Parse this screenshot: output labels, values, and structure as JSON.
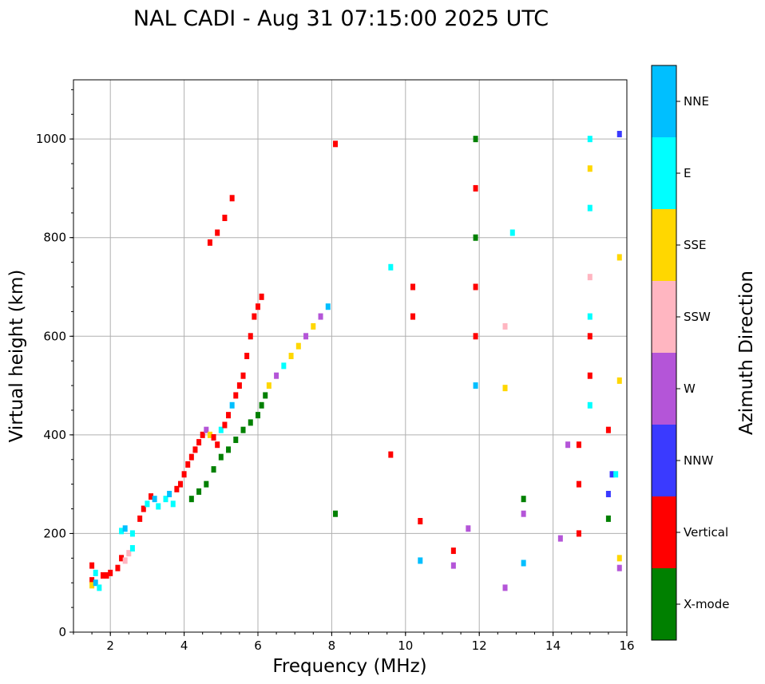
{
  "chart_data": {
    "type": "scatter",
    "title": "NAL CADI - Aug 31 07:15:00 2025 UTC",
    "xlabel": "Frequency (MHz)",
    "ylabel": "Virtual height (km)",
    "xlim": [
      1,
      16
    ],
    "ylim": [
      0,
      1120
    ],
    "xticks": [
      2,
      4,
      6,
      8,
      10,
      12,
      14,
      16
    ],
    "yticks": [
      0,
      200,
      400,
      600,
      800,
      1000
    ],
    "grid": true,
    "colorbar": {
      "label": "Azimuth Direction",
      "categories": [
        {
          "name": "X-mode",
          "color": "#008000"
        },
        {
          "name": "Vertical",
          "color": "#ff0000"
        },
        {
          "name": "NNW",
          "color": "#3a3aff"
        },
        {
          "name": "W",
          "color": "#b455d8"
        },
        {
          "name": "SSW",
          "color": "#ffb6c1"
        },
        {
          "name": "SSE",
          "color": "#ffd700"
        },
        {
          "name": "E",
          "color": "#00ffff"
        },
        {
          "name": "NNE",
          "color": "#00bfff"
        }
      ]
    },
    "points": [
      [
        1.5,
        105,
        "Vertical"
      ],
      [
        1.5,
        95,
        "SSE"
      ],
      [
        1.6,
        120,
        "E"
      ],
      [
        1.6,
        100,
        "NNE"
      ],
      [
        1.7,
        90,
        "E"
      ],
      [
        1.5,
        135,
        "Vertical"
      ],
      [
        1.8,
        115,
        "Vertical"
      ],
      [
        1.9,
        115,
        "Vertical"
      ],
      [
        2.0,
        120,
        "Vertical"
      ],
      [
        2.2,
        130,
        "Vertical"
      ],
      [
        2.3,
        150,
        "Vertical"
      ],
      [
        2.4,
        145,
        "SSW"
      ],
      [
        2.5,
        160,
        "SSW"
      ],
      [
        2.6,
        170,
        "E"
      ],
      [
        2.3,
        205,
        "E"
      ],
      [
        2.4,
        210,
        "NNE"
      ],
      [
        2.6,
        200,
        "E"
      ],
      [
        2.8,
        230,
        "Vertical"
      ],
      [
        2.9,
        250,
        "Vertical"
      ],
      [
        3.0,
        260,
        "E"
      ],
      [
        3.1,
        275,
        "Vertical"
      ],
      [
        3.2,
        270,
        "NNE"
      ],
      [
        3.3,
        255,
        "E"
      ],
      [
        3.5,
        270,
        "E"
      ],
      [
        3.6,
        280,
        "NNE"
      ],
      [
        3.7,
        260,
        "E"
      ],
      [
        3.8,
        290,
        "Vertical"
      ],
      [
        3.9,
        300,
        "Vertical"
      ],
      [
        4.0,
        320,
        "Vertical"
      ],
      [
        4.1,
        340,
        "Vertical"
      ],
      [
        4.2,
        355,
        "Vertical"
      ],
      [
        4.3,
        370,
        "Vertical"
      ],
      [
        4.4,
        385,
        "Vertical"
      ],
      [
        4.5,
        400,
        "Vertical"
      ],
      [
        4.6,
        410,
        "W"
      ],
      [
        4.7,
        400,
        "SSE"
      ],
      [
        4.8,
        395,
        "Vertical"
      ],
      [
        4.9,
        380,
        "Vertical"
      ],
      [
        5.0,
        410,
        "E"
      ],
      [
        5.1,
        420,
        "Vertical"
      ],
      [
        5.2,
        440,
        "Vertical"
      ],
      [
        5.3,
        460,
        "NNE"
      ],
      [
        5.4,
        480,
        "Vertical"
      ],
      [
        5.5,
        500,
        "Vertical"
      ],
      [
        5.6,
        520,
        "Vertical"
      ],
      [
        5.7,
        560,
        "Vertical"
      ],
      [
        5.8,
        600,
        "Vertical"
      ],
      [
        5.9,
        640,
        "Vertical"
      ],
      [
        6.0,
        660,
        "Vertical"
      ],
      [
        6.1,
        680,
        "Vertical"
      ],
      [
        4.2,
        270,
        "X-mode"
      ],
      [
        4.4,
        285,
        "X-mode"
      ],
      [
        4.6,
        300,
        "X-mode"
      ],
      [
        4.8,
        330,
        "X-mode"
      ],
      [
        5.0,
        355,
        "X-mode"
      ],
      [
        5.2,
        370,
        "X-mode"
      ],
      [
        5.4,
        390,
        "X-mode"
      ],
      [
        5.6,
        410,
        "X-mode"
      ],
      [
        5.8,
        425,
        "X-mode"
      ],
      [
        6.0,
        440,
        "X-mode"
      ],
      [
        6.1,
        460,
        "X-mode"
      ],
      [
        6.2,
        480,
        "X-mode"
      ],
      [
        6.3,
        500,
        "SSE"
      ],
      [
        6.5,
        520,
        "W"
      ],
      [
        6.7,
        540,
        "E"
      ],
      [
        6.9,
        560,
        "SSE"
      ],
      [
        7.1,
        580,
        "SSE"
      ],
      [
        7.3,
        600,
        "W"
      ],
      [
        7.5,
        620,
        "SSE"
      ],
      [
        7.7,
        640,
        "W"
      ],
      [
        7.9,
        660,
        "NNE"
      ],
      [
        4.7,
        790,
        "Vertical"
      ],
      [
        4.9,
        810,
        "Vertical"
      ],
      [
        5.1,
        840,
        "Vertical"
      ],
      [
        5.3,
        880,
        "Vertical"
      ],
      [
        8.1,
        990,
        "Vertical"
      ],
      [
        8.1,
        240,
        "X-mode"
      ],
      [
        9.6,
        740,
        "E"
      ],
      [
        9.6,
        360,
        "Vertical"
      ],
      [
        10.2,
        640,
        "Vertical"
      ],
      [
        10.2,
        700,
        "Vertical"
      ],
      [
        11.9,
        1000,
        "X-mode"
      ],
      [
        11.9,
        900,
        "Vertical"
      ],
      [
        11.9,
        800,
        "X-mode"
      ],
      [
        11.9,
        700,
        "Vertical"
      ],
      [
        11.9,
        600,
        "Vertical"
      ],
      [
        11.9,
        500,
        "NNE"
      ],
      [
        13.2,
        270,
        "X-mode"
      ],
      [
        13.2,
        240,
        "W"
      ],
      [
        13.2,
        140,
        "NNE"
      ],
      [
        14.4,
        380,
        "W"
      ],
      [
        14.7,
        380,
        "Vertical"
      ],
      [
        14.7,
        300,
        "Vertical"
      ],
      [
        14.7,
        200,
        "Vertical"
      ],
      [
        15.0,
        1000,
        "E"
      ],
      [
        15.0,
        940,
        "SSE"
      ],
      [
        15.0,
        860,
        "E"
      ],
      [
        15.0,
        720,
        "SSW"
      ],
      [
        15.0,
        640,
        "E"
      ],
      [
        15.0,
        600,
        "Vertical"
      ],
      [
        15.0,
        520,
        "Vertical"
      ],
      [
        15.0,
        460,
        "E"
      ],
      [
        15.5,
        410,
        "Vertical"
      ],
      [
        15.6,
        320,
        "NNW"
      ],
      [
        15.7,
        320,
        "E"
      ],
      [
        15.5,
        280,
        "NNW"
      ],
      [
        15.5,
        230,
        "X-mode"
      ],
      [
        15.8,
        1010,
        "NNW"
      ],
      [
        15.8,
        760,
        "SSE"
      ],
      [
        15.8,
        510,
        "SSE"
      ],
      [
        15.8,
        150,
        "SSE"
      ],
      [
        15.8,
        130,
        "W"
      ],
      [
        12.7,
        90,
        "W"
      ],
      [
        12.7,
        620,
        "SSW"
      ],
      [
        12.7,
        495,
        "SSE"
      ],
      [
        12.9,
        810,
        "E"
      ],
      [
        10.4,
        225,
        "Vertical"
      ],
      [
        10.4,
        145,
        "NNE"
      ],
      [
        11.3,
        165,
        "Vertical"
      ],
      [
        11.3,
        135,
        "W"
      ],
      [
        11.7,
        210,
        "W"
      ],
      [
        14.2,
        190,
        "W"
      ]
    ]
  }
}
